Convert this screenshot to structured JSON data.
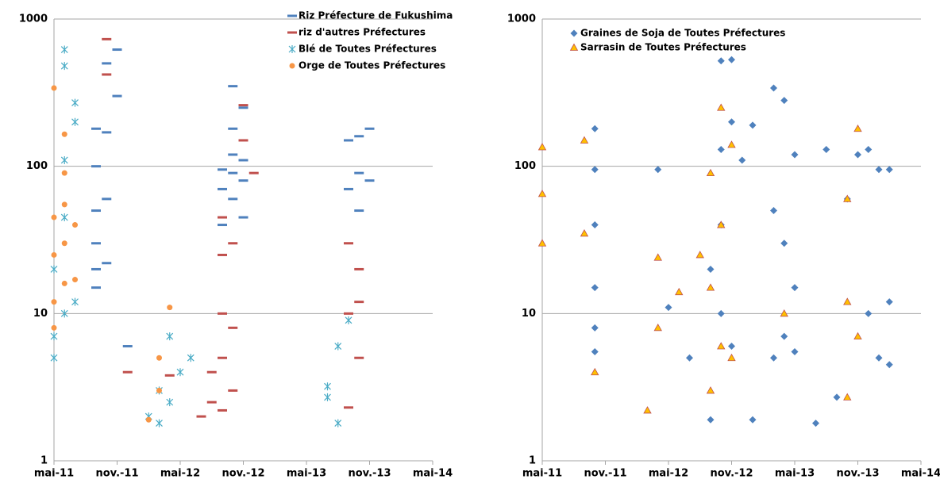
{
  "chart_data": [
    {
      "type": "scatter",
      "yscale": "log",
      "grid": true,
      "legend": "upper right",
      "ylim": [
        1,
        1000
      ],
      "yticks": [
        1,
        10,
        100,
        1000
      ],
      "xlim": [
        "2011-05",
        "2014-05"
      ],
      "xticks": [
        {
          "value": "2011-05",
          "label": "mai-11"
        },
        {
          "value": "2011-11",
          "label": "nov.-11"
        },
        {
          "value": "2012-05",
          "label": "mai-12"
        },
        {
          "value": "2012-11",
          "label": "nov.-12"
        },
        {
          "value": "2013-05",
          "label": "mai-13"
        },
        {
          "value": "2013-11",
          "label": "nov.-13"
        },
        {
          "value": "2014-05",
          "label": "mai-14"
        }
      ],
      "series": [
        {
          "name": "Riz Préfecture de Fukushima",
          "color": "#4f81bd",
          "marker": "dash",
          "x": [
            "2011-09",
            "2011-09",
            "2011-09",
            "2011-09",
            "2011-09",
            "2011-09",
            "2011-10",
            "2011-10",
            "2011-10",
            "2011-10",
            "2011-11",
            "2011-11",
            "2011-12",
            "2012-09",
            "2012-09",
            "2012-09",
            "2012-10",
            "2012-10",
            "2012-10",
            "2012-10",
            "2012-10",
            "2012-11",
            "2012-11",
            "2012-11",
            "2012-11",
            "2013-09",
            "2013-09",
            "2013-10",
            "2013-10",
            "2013-10",
            "2013-11",
            "2013-11"
          ],
          "values": [
            180,
            100,
            50,
            30,
            20,
            15,
            500,
            170,
            60,
            22,
            620,
            300,
            6,
            40,
            70,
            95,
            350,
            180,
            120,
            90,
            60,
            250,
            110,
            80,
            45,
            150,
            70,
            160,
            90,
            50,
            180,
            80
          ]
        },
        {
          "name": "riz d'autres Préfectures",
          "color": "#c0504d",
          "marker": "dash",
          "x": [
            "2011-10",
            "2011-10",
            "2011-12",
            "2012-04",
            "2012-07",
            "2012-08",
            "2012-08",
            "2012-09",
            "2012-09",
            "2012-09",
            "2012-09",
            "2012-09",
            "2012-10",
            "2012-10",
            "2012-10",
            "2012-11",
            "2012-11",
            "2012-12",
            "2013-09",
            "2013-09",
            "2013-09",
            "2013-10",
            "2013-10",
            "2013-10"
          ],
          "values": [
            730,
            420,
            4,
            3.8,
            2,
            2.5,
            4,
            2.2,
            5,
            10,
            25,
            45,
            3,
            8,
            30,
            260,
            150,
            90,
            2.3,
            10,
            30,
            5,
            12,
            20
          ]
        },
        {
          "name": "Blé de Toutes Préfectures",
          "color": "#4bacc6",
          "marker": "asterisk",
          "x": [
            "2011-05",
            "2011-05",
            "2011-05",
            "2011-06",
            "2011-06",
            "2011-06",
            "2011-06",
            "2011-06",
            "2011-07",
            "2011-07",
            "2011-07",
            "2012-02",
            "2012-03",
            "2012-03",
            "2012-04",
            "2012-04",
            "2012-05",
            "2012-06",
            "2013-07",
            "2013-07",
            "2013-08",
            "2013-08",
            "2013-09"
          ],
          "values": [
            5,
            7,
            20,
            10,
            45,
            110,
            620,
            480,
            270,
            200,
            12,
            2,
            1.8,
            3,
            2.5,
            7,
            4,
            5,
            2.7,
            3.2,
            1.8,
            6,
            9
          ]
        },
        {
          "name": "Orge de Toutes Préfectures",
          "color": "#f79646",
          "marker": "circle",
          "x": [
            "2011-05",
            "2011-05",
            "2011-05",
            "2011-05",
            "2011-05",
            "2011-06",
            "2011-06",
            "2011-06",
            "2011-06",
            "2011-06",
            "2011-07",
            "2011-07",
            "2012-02",
            "2012-03",
            "2012-03",
            "2012-04"
          ],
          "values": [
            8,
            12,
            25,
            45,
            340,
            16,
            30,
            55,
            90,
            165,
            17,
            40,
            1.9,
            3,
            5,
            11
          ]
        }
      ]
    },
    {
      "type": "scatter",
      "yscale": "log",
      "grid": true,
      "legend": "upper left",
      "ylim": [
        1,
        1000
      ],
      "yticks": [
        1,
        10,
        100,
        1000
      ],
      "xlim": [
        "2011-05",
        "2014-05"
      ],
      "xticks": [
        {
          "value": "2011-05",
          "label": "mai-11"
        },
        {
          "value": "2011-11",
          "label": "nov.-11"
        },
        {
          "value": "2012-05",
          "label": "mai-12"
        },
        {
          "value": "2012-11",
          "label": "nov.-12"
        },
        {
          "value": "2013-05",
          "label": "mai-13"
        },
        {
          "value": "2013-11",
          "label": "nov.-13"
        },
        {
          "value": "2014-05",
          "label": "mai-14"
        }
      ],
      "series": [
        {
          "name": "Graines de Soja de Toutes Préfectures",
          "color": "#4f81bd",
          "marker": "diamond",
          "x": [
            "2011-10",
            "2011-10",
            "2011-10",
            "2011-10",
            "2011-10",
            "2011-10",
            "2012-04",
            "2012-05",
            "2012-07",
            "2012-09",
            "2012-09",
            "2012-10",
            "2012-10",
            "2012-10",
            "2012-10",
            "2012-11",
            "2012-11",
            "2012-11",
            "2012-12",
            "2013-01",
            "2013-01",
            "2013-03",
            "2013-03",
            "2013-03",
            "2013-04",
            "2013-04",
            "2013-04",
            "2013-05",
            "2013-05",
            "2013-05",
            "2013-07",
            "2013-08",
            "2013-09",
            "2013-10",
            "2013-11",
            "2013-12",
            "2013-12",
            "2014-01",
            "2014-01",
            "2014-02",
            "2014-02",
            "2014-02"
          ],
          "values": [
            180,
            95,
            40,
            15,
            8,
            5.5,
            95,
            11,
            5,
            1.9,
            20,
            520,
            130,
            40,
            10,
            530,
            200,
            6,
            110,
            1.9,
            190,
            340,
            50,
            5,
            280,
            30,
            7,
            120,
            15,
            5.5,
            1.8,
            130,
            2.7,
            60,
            120,
            130,
            10,
            95,
            5,
            95,
            12,
            4.5
          ]
        },
        {
          "name": "Sarrasin de Toutes Préfectures",
          "color": "#ffc000",
          "marker": "triangle",
          "x": [
            "2011-05",
            "2011-05",
            "2011-05",
            "2011-09",
            "2011-09",
            "2011-10",
            "2012-03",
            "2012-04",
            "2012-04",
            "2012-06",
            "2012-08",
            "2012-09",
            "2012-09",
            "2012-09",
            "2012-10",
            "2012-10",
            "2012-10",
            "2012-11",
            "2012-11",
            "2013-04",
            "2013-10",
            "2013-10",
            "2013-10",
            "2013-11",
            "2013-11"
          ],
          "values": [
            135,
            65,
            30,
            150,
            35,
            4,
            2.2,
            8,
            24,
            14,
            25,
            3,
            15,
            90,
            250,
            40,
            6,
            140,
            5,
            10,
            2.7,
            12,
            60,
            180,
            7
          ]
        }
      ]
    }
  ]
}
